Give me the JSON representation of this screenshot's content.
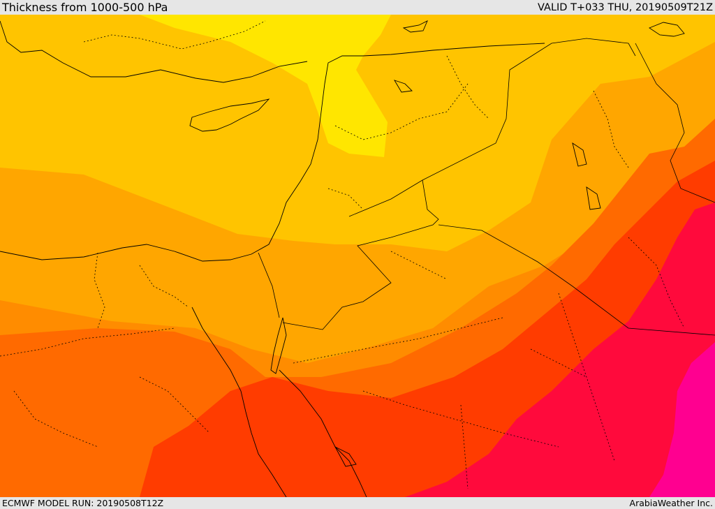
{
  "header": {
    "title": "Thickness from 1000-500 hPa",
    "valid": "VALID T+033 THU, 20190509T21Z"
  },
  "footer": {
    "model_run": "ECMWF MODEL RUN: 20190508T12Z",
    "credit": "ArabiaWeather Inc."
  },
  "map": {
    "field": "1000-500 hPa thickness",
    "region": "Eastern Mediterranean / Levant / Arabian Peninsula",
    "colors": {
      "band_1": "#ffe600",
      "band_2": "#ffc400",
      "band_3": "#ffa600",
      "band_4": "#ff8c00",
      "band_5": "#ff6a00",
      "band_6": "#ff3c00",
      "band_7": "#ff0a3c",
      "band_8": "#ff0090",
      "borders": "#000000",
      "water_outline": "#000000"
    }
  }
}
